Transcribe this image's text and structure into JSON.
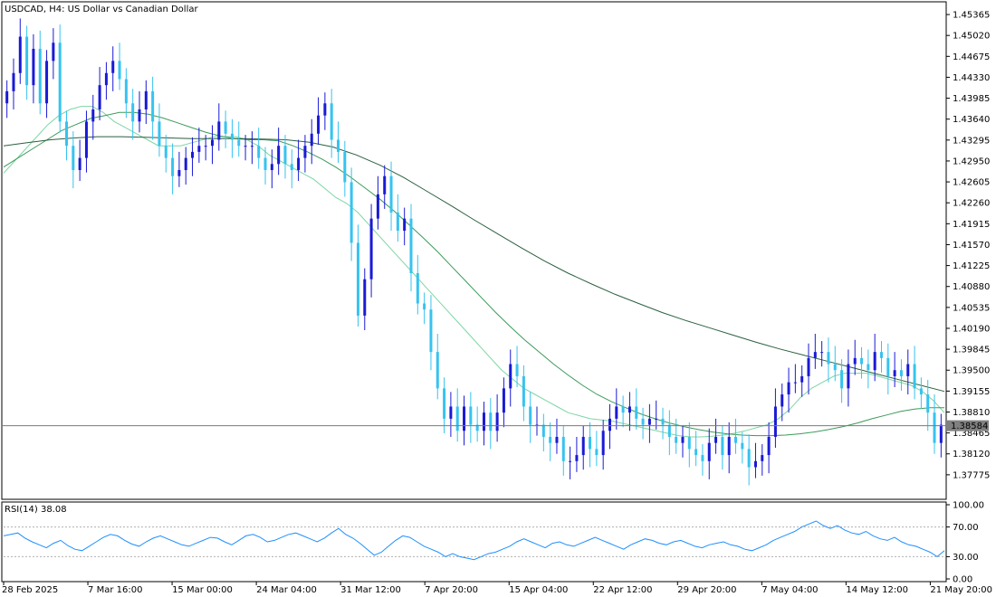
{
  "main_chart": {
    "symbol_title": "USDCAD, H4:  US Dollar vs Canadian Dollar",
    "current_price_label": "1.38584",
    "colors": {
      "bull": "#1a1ad6",
      "bear": "#36c3f0",
      "ma_fast": "#7dd6a4",
      "ma_mid": "#3c9a5a",
      "ma_slow": "#2b6040",
      "price_line": "#7a7a7a",
      "rsi_line": "#1e8fff"
    }
  },
  "rsi_panel": {
    "label": "RSI(14) 38.08",
    "y_ticks": [
      "100.00",
      "70.00",
      "30.00",
      "0.00"
    ]
  },
  "chart_data": [
    {
      "type": "line",
      "title": "USDCAD, H4:  US Dollar vs Canadian Dollar",
      "ylim": [
        1.3743,
        1.4553
      ],
      "y_ticks": [
        "1.45365",
        "1.45020",
        "1.44675",
        "1.44330",
        "1.43985",
        "1.43640",
        "1.43295",
        "1.42950",
        "1.42605",
        "1.42260",
        "1.41915",
        "1.41570",
        "1.41225",
        "1.40880",
        "1.40535",
        "1.40190",
        "1.39845",
        "1.39500",
        "1.39155",
        "1.38810",
        "1.38465",
        "1.38120",
        "1.37775"
      ],
      "x_ticks": [
        "28 Feb 2025",
        "7 Mar 16:00",
        "15 Mar 00:00",
        "24 Mar 04:00",
        "31 Mar 12:00",
        "7 Apr 20:00",
        "15 Apr 04:00",
        "22 Apr 12:00",
        "29 Apr 20:00",
        "7 May 04:00",
        "14 May 12:00",
        "21 May 20:00"
      ],
      "current_price": 1.38584,
      "series": [
        {
          "values": [
            1.441,
            1.444,
            1.45,
            1.442,
            1.448,
            1.439,
            1.446,
            1.449,
            1.436,
            1.432,
            1.428,
            1.43,
            1.436,
            1.438,
            1.442,
            1.444,
            1.446,
            1.443,
            1.439,
            1.436,
            1.438,
            1.441,
            1.436,
            1.432,
            1.43,
            1.427,
            1.428,
            1.43,
            1.431,
            1.432,
            1.432,
            1.433,
            1.436,
            1.434,
            1.433,
            1.432,
            1.432,
            1.432,
            1.43,
            1.428,
            1.429,
            1.432,
            1.429,
            1.428,
            1.43,
            1.432,
            1.434,
            1.437,
            1.439,
            1.433,
            1.431,
            1.426,
            1.416,
            1.404,
            1.41,
            1.42,
            1.424,
            1.427,
            1.421,
            1.418,
            1.42,
            1.411,
            1.406,
            1.405,
            1.398,
            1.392,
            1.387,
            1.389,
            1.385,
            1.389,
            1.386,
            1.385,
            1.388,
            1.385,
            1.388,
            1.392,
            1.396,
            1.394,
            1.389,
            1.386,
            1.386,
            1.384,
            1.383,
            1.384,
            1.38,
            1.38,
            1.381,
            1.384,
            1.382,
            1.381,
            1.385,
            1.387,
            1.389,
            1.388,
            1.389,
            1.387,
            1.386,
            1.387,
            1.387,
            1.386,
            1.384,
            1.383,
            1.384,
            1.382,
            1.381,
            1.38,
            1.383,
            1.384,
            1.381,
            1.384,
            1.383,
            1.382,
            1.379,
            1.38,
            1.381,
            1.384,
            1.389,
            1.391,
            1.393,
            1.393,
            1.394,
            1.397,
            1.398,
            1.398,
            1.396,
            1.395,
            1.392,
            1.396,
            1.397,
            1.396,
            1.395,
            1.398,
            1.397,
            1.394,
            1.395,
            1.394,
            1.396,
            1.392,
            1.391,
            1.388,
            1.383,
            1.386
          ]
        },
        {
          "values": [
            1.4275,
            1.4295,
            1.4315,
            1.4335,
            1.4355,
            1.437,
            1.438,
            1.4385,
            1.4385,
            1.4375,
            1.436,
            1.435,
            1.434,
            1.433,
            1.432,
            1.432,
            1.432,
            1.4325,
            1.433,
            1.4335,
            1.4335,
            1.4335,
            1.433,
            1.432,
            1.4305,
            1.4295,
            1.4285,
            1.4275,
            1.4265,
            1.425,
            1.4235,
            1.4225,
            1.421,
            1.419,
            1.417,
            1.415,
            1.413,
            1.411,
            1.409,
            1.407,
            1.405,
            1.403,
            1.401,
            1.399,
            1.397,
            1.395,
            1.3935,
            1.392,
            1.391,
            1.39,
            1.389,
            1.388,
            1.3875,
            1.387,
            1.3868,
            1.3866,
            1.3862,
            1.3858,
            1.3854,
            1.385,
            1.3846,
            1.3842,
            1.384,
            1.384,
            1.3841,
            1.3843,
            1.3846,
            1.385,
            1.3855,
            1.386,
            1.387,
            1.3885,
            1.3905,
            1.392,
            1.393,
            1.394,
            1.3945,
            1.3945,
            1.3945,
            1.394,
            1.3935,
            1.393,
            1.3925,
            1.3915,
            1.39,
            1.388
          ]
        },
        {
          "values": [
            1.4285,
            1.43,
            1.4315,
            1.433,
            1.4345,
            1.4355,
            1.4365,
            1.437,
            1.4375,
            1.4375,
            1.4372,
            1.4366,
            1.4358,
            1.435,
            1.4342,
            1.4336,
            1.4332,
            1.433,
            1.433,
            1.4328,
            1.432,
            1.431,
            1.4298,
            1.4284,
            1.4268,
            1.425,
            1.4232,
            1.4212,
            1.419,
            1.4168,
            1.4145,
            1.412,
            1.4095,
            1.407,
            1.4045,
            1.4022,
            1.4,
            1.398,
            1.396,
            1.3942,
            1.3925,
            1.391,
            1.3898,
            1.3888,
            1.3878,
            1.387,
            1.3863,
            1.3857,
            1.3852,
            1.3848,
            1.3845,
            1.3843,
            1.3842,
            1.3842,
            1.3843,
            1.3845,
            1.3848,
            1.3852,
            1.3857,
            1.3863,
            1.387,
            1.3876,
            1.3882,
            1.3886,
            1.3888,
            1.3888
          ]
        },
        {
          "values": [
            1.432,
            1.4325,
            1.433,
            1.4333,
            1.4335,
            1.4335,
            1.4334,
            1.4333,
            1.4332,
            1.4332,
            1.4332,
            1.4331,
            1.433,
            1.4326,
            1.4318,
            1.4305,
            1.4288,
            1.4268,
            1.4245,
            1.4222,
            1.4198,
            1.4175,
            1.4152,
            1.413,
            1.411,
            1.4092,
            1.4075,
            1.406,
            1.4045,
            1.4032,
            1.402,
            1.4008,
            1.3996,
            1.3985,
            1.3975,
            1.3965,
            1.3955,
            1.3945,
            1.3935,
            1.3925,
            1.3915
          ]
        }
      ]
    },
    {
      "type": "line",
      "title": "RSI(14) 38.08",
      "ylim": [
        0,
        100
      ],
      "y_ticks": [
        "100.00",
        "70.00",
        "30.00",
        "0.00"
      ],
      "series": [
        {
          "values": [
            58,
            60,
            62,
            55,
            50,
            46,
            42,
            48,
            52,
            45,
            40,
            38,
            44,
            50,
            56,
            60,
            58,
            52,
            47,
            44,
            50,
            55,
            58,
            54,
            50,
            46,
            44,
            48,
            52,
            56,
            55,
            50,
            46,
            52,
            58,
            60,
            56,
            50,
            52,
            56,
            60,
            62,
            58,
            54,
            50,
            55,
            62,
            68,
            60,
            55,
            48,
            40,
            32,
            36,
            44,
            52,
            58,
            56,
            50,
            44,
            40,
            36,
            30,
            34,
            30,
            28,
            26,
            30,
            34,
            36,
            40,
            44,
            50,
            54,
            50,
            46,
            42,
            48,
            50,
            46,
            44,
            48,
            52,
            56,
            52,
            48,
            44,
            40,
            46,
            50,
            54,
            52,
            48,
            46,
            50,
            52,
            48,
            44,
            42,
            46,
            48,
            50,
            46,
            44,
            40,
            38,
            42,
            46,
            52,
            56,
            60,
            64,
            70,
            74,
            78,
            72,
            68,
            72,
            66,
            62,
            60,
            64,
            58,
            54,
            52,
            56,
            50,
            46,
            44,
            40,
            36,
            30,
            38
          ]
        }
      ]
    }
  ]
}
